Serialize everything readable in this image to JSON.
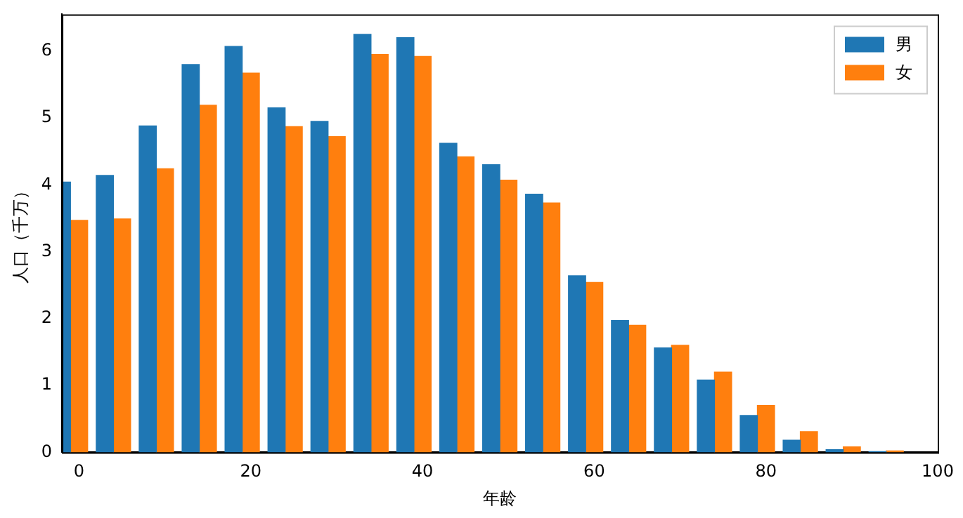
{
  "chart_data": {
    "type": "bar",
    "xlabel": "年龄",
    "ylabel": "人口（千万）",
    "xlim": [
      -2,
      100
    ],
    "xticks": [
      0,
      20,
      40,
      60,
      80,
      100
    ],
    "ylim": [
      0,
      6.55
    ],
    "yticks": [
      0,
      1,
      2,
      3,
      4,
      5,
      6
    ],
    "legend": "top right",
    "grid": false,
    "series": [
      {
        "name": "男",
        "color": "#1f77b4",
        "x": [
          -2,
          3,
          8,
          13,
          18,
          23,
          28,
          33,
          38,
          43,
          48,
          53,
          58,
          63,
          68,
          73,
          78,
          83,
          88,
          93
        ],
        "values": [
          4.04,
          4.14,
          4.88,
          5.8,
          6.07,
          5.15,
          4.95,
          6.25,
          6.2,
          4.62,
          4.3,
          3.86,
          2.64,
          1.97,
          1.56,
          1.08,
          0.55,
          0.18,
          0.04,
          0.01
        ]
      },
      {
        "name": "女",
        "color": "#ff7f0e",
        "x": [
          0,
          5,
          10,
          15,
          20,
          25,
          30,
          35,
          40,
          45,
          50,
          55,
          60,
          65,
          70,
          75,
          80,
          85,
          90,
          95
        ],
        "values": [
          3.47,
          3.49,
          4.24,
          5.19,
          5.67,
          4.87,
          4.72,
          5.95,
          5.92,
          4.42,
          4.07,
          3.73,
          2.54,
          1.9,
          1.6,
          1.2,
          0.7,
          0.31,
          0.08,
          0.02
        ]
      }
    ]
  }
}
